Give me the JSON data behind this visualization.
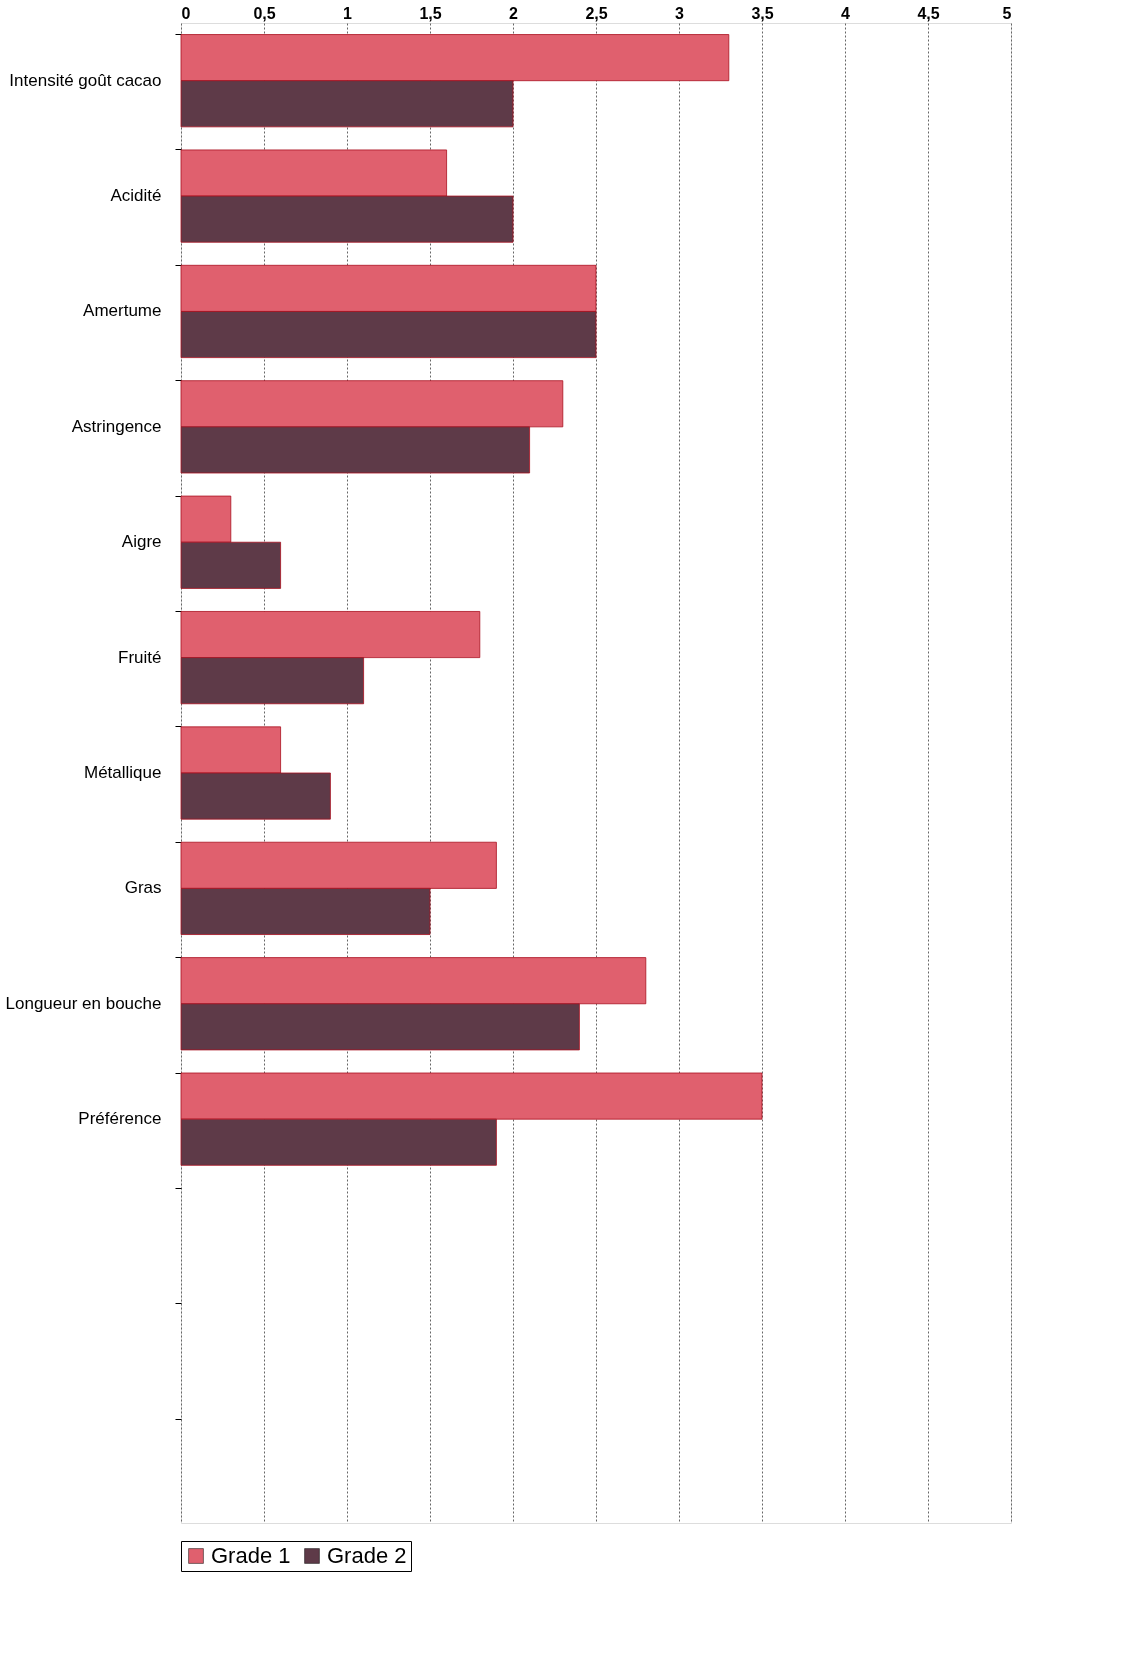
{
  "chart_data": {
    "type": "bar",
    "orientation": "horizontal",
    "categories": [
      "Intensité goût cacao",
      "Acidité",
      "Amertume",
      "Astringence",
      "Aigre",
      "Fruité",
      "Métallique",
      "Gras",
      "Longueur en bouche",
      "Préférence",
      null,
      null,
      null
    ],
    "series": [
      {
        "name": "Grade 1",
        "color": "#e0606e",
        "values": [
          3.3,
          1.6,
          2.5,
          2.3,
          0.3,
          1.8,
          0.6,
          1.9,
          2.8,
          3.5,
          null,
          null,
          null
        ]
      },
      {
        "name": "Grade 2",
        "color": "#5e3a48",
        "values": [
          2.0,
          2.0,
          2.5,
          2.1,
          0.6,
          1.1,
          0.9,
          1.5,
          2.4,
          1.9,
          null,
          null,
          null
        ]
      }
    ],
    "xlim": [
      0,
      5
    ],
    "xticks": [
      0,
      {
        "value": 0.5,
        "label": "0,5"
      },
      1,
      {
        "value": 1.5,
        "label": "1,5"
      },
      2,
      {
        "value": 2.5,
        "label": "2,5"
      },
      3,
      {
        "value": 3.5,
        "label": "3,5"
      },
      4,
      {
        "value": 4.5,
        "label": "4,5"
      },
      5
    ],
    "grid": "x",
    "legend": "bottom"
  }
}
